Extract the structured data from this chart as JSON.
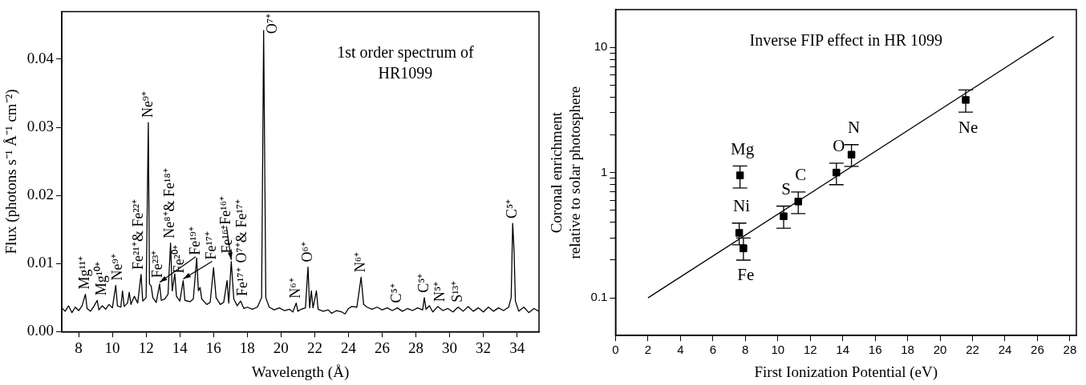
{
  "chart_data": [
    {
      "type": "line",
      "xlabel": "Wavelength (Å)",
      "ylabel": "Flux (photons s⁻¹ Å⁻¹ cm⁻²)",
      "xlim": [
        7,
        35.3
      ],
      "ylim": [
        0,
        0.047
      ],
      "xticks": [
        8,
        10,
        12,
        14,
        16,
        18,
        20,
        22,
        24,
        26,
        28,
        30,
        32,
        34
      ],
      "yticks": [
        {
          "value": 0,
          "label": "0.00"
        },
        {
          "value": 0.01,
          "label": "0.01"
        },
        {
          "value": 0.02,
          "label": "0.02"
        },
        {
          "value": 0.03,
          "label": "0.03"
        },
        {
          "value": 0.04,
          "label": "0.04"
        }
      ],
      "series": [
        {
          "color": "#000000",
          "x": [
            7.0,
            7.2,
            7.4,
            7.6,
            7.8,
            8.0,
            8.2,
            8.4,
            8.5,
            8.7,
            8.9,
            9.1,
            9.2,
            9.4,
            9.6,
            9.8,
            10.0,
            10.2,
            10.3,
            10.5,
            10.6,
            10.7,
            10.9,
            11.0,
            11.1,
            11.3,
            11.5,
            11.7,
            11.8,
            12.0,
            12.13,
            12.2,
            12.3,
            12.4,
            12.6,
            12.8,
            12.9,
            13.1,
            13.3,
            13.45,
            13.55,
            13.7,
            13.8,
            14.0,
            14.2,
            14.3,
            14.6,
            14.8,
            15.0,
            15.1,
            15.2,
            15.3,
            15.6,
            15.8,
            16.0,
            16.15,
            16.4,
            16.6,
            16.8,
            16.9,
            17.05,
            17.2,
            17.4,
            17.6,
            17.8,
            18.0,
            18.3,
            18.6,
            18.85,
            18.97,
            19.1,
            19.3,
            19.6,
            19.9,
            20.2,
            20.5,
            20.7,
            20.9,
            21.0,
            21.2,
            21.45,
            21.6,
            21.7,
            21.8,
            21.9,
            22.1,
            22.2,
            22.5,
            22.8,
            23.0,
            23.3,
            23.6,
            23.8,
            24.0,
            24.2,
            24.5,
            24.75,
            24.9,
            25.1,
            25.4,
            25.7,
            26.0,
            26.3,
            26.6,
            26.9,
            27.2,
            27.5,
            27.8,
            28.1,
            28.4,
            28.5,
            28.6,
            28.8,
            29.0,
            29.3,
            29.6,
            29.9,
            30.2,
            30.5,
            30.8,
            31.1,
            31.4,
            31.7,
            32.0,
            32.3,
            32.6,
            32.9,
            33.2,
            33.5,
            33.65,
            33.74,
            33.82,
            33.9,
            34.1,
            34.4,
            34.7,
            35.0,
            35.3
          ],
          "values": [
            0.0035,
            0.003,
            0.0038,
            0.0028,
            0.0036,
            0.0031,
            0.0038,
            0.0055,
            0.0034,
            0.003,
            0.0037,
            0.0046,
            0.0032,
            0.0038,
            0.0033,
            0.004,
            0.0035,
            0.0068,
            0.0038,
            0.0036,
            0.006,
            0.0037,
            0.0042,
            0.0058,
            0.004,
            0.0052,
            0.0042,
            0.0084,
            0.0045,
            0.005,
            0.0307,
            0.007,
            0.0067,
            0.005,
            0.0043,
            0.007,
            0.0046,
            0.0048,
            0.0055,
            0.013,
            0.006,
            0.0085,
            0.0052,
            0.0045,
            0.0075,
            0.0046,
            0.0044,
            0.0048,
            0.0108,
            0.006,
            0.0065,
            0.0048,
            0.004,
            0.0043,
            0.0094,
            0.005,
            0.004,
            0.0043,
            0.0075,
            0.0042,
            0.0103,
            0.0048,
            0.0038,
            0.0045,
            0.0034,
            0.0036,
            0.0033,
            0.0036,
            0.005,
            0.0442,
            0.005,
            0.0036,
            0.0032,
            0.0035,
            0.0031,
            0.0033,
            0.0029,
            0.0042,
            0.003,
            0.0033,
            0.0035,
            0.0095,
            0.0035,
            0.006,
            0.0035,
            0.006,
            0.0033,
            0.003,
            0.0032,
            0.0027,
            0.0031,
            0.0029,
            0.0026,
            0.0034,
            0.0037,
            0.0036,
            0.008,
            0.004,
            0.0036,
            0.0033,
            0.0036,
            0.0032,
            0.0035,
            0.0031,
            0.0035,
            0.003,
            0.0034,
            0.0031,
            0.0035,
            0.0032,
            0.005,
            0.0033,
            0.0038,
            0.0029,
            0.0037,
            0.0031,
            0.0034,
            0.0029,
            0.0036,
            0.003,
            0.0037,
            0.003,
            0.0035,
            0.0029,
            0.0036,
            0.003,
            0.0035,
            0.0031,
            0.0036,
            0.005,
            0.0159,
            0.012,
            0.0045,
            0.003,
            0.0036,
            0.0028,
            0.0034,
            0.003
          ]
        }
      ],
      "annotations": [
        "1st order spectrum of\nHR1099",
        {
          "text": "Mg¹¹⁺",
          "x": 8.4,
          "y": 0.0055
        },
        {
          "text": "Mg¹⁰⁺",
          "x": 9.1,
          "y": 0.0046
        },
        {
          "text": "Ne⁹⁺",
          "x": 10.2,
          "y": 0.0068
        },
        {
          "text": "Fe²³⁺",
          "x": 10.6,
          "y": 0.006
        },
        {
          "text": "Fe²¹⁺& Fe²²⁺",
          "x": 11.7,
          "y": 0.0084
        },
        {
          "text": "Ne⁹⁺",
          "x": 12.13,
          "y": 0.0307
        },
        {
          "text": "Fe²⁰⁺",
          "x": 12.3,
          "y": 0.0067
        },
        {
          "text": "Fe¹⁹⁺",
          "x": 12.8,
          "y": 0.007
        },
        {
          "text": "Ne⁸⁺& Fe¹⁸⁺",
          "x": 13.45,
          "y": 0.013
        },
        {
          "text": "Fe¹⁷⁺",
          "x": 14.2,
          "y": 0.0075
        },
        {
          "text": "Fe¹⁶⁺",
          "x": 15.0,
          "y": 0.0108
        },
        {
          "text": "O⁷⁺& Fe¹⁷⁺",
          "x": 16.0,
          "y": 0.0094
        },
        {
          "text": "Fe¹⁶⁺",
          "x": 17.05,
          "y": 0.0103
        },
        {
          "text": "Fe¹⁷⁺",
          "x": 17.6,
          "y": 0.0045
        },
        {
          "text": "O⁷⁺",
          "x": 18.97,
          "y": 0.0442
        },
        {
          "text": "N⁶⁺",
          "x": 20.9,
          "y": 0.0042
        },
        {
          "text": "O⁶⁺",
          "x": 21.6,
          "y": 0.0095
        },
        {
          "text": "N⁶⁺",
          "x": 24.75,
          "y": 0.008
        },
        {
          "text": "C⁵⁺",
          "x": 26.9,
          "y": 0.0035
        },
        {
          "text": "C⁵⁺",
          "x": 28.5,
          "y": 0.005
        },
        {
          "text": "N⁵⁺",
          "x": 29.3,
          "y": 0.0037
        },
        {
          "text": "S¹³⁺",
          "x": 30.5,
          "y": 0.0036
        },
        {
          "text": "C⁵⁺",
          "x": 33.74,
          "y": 0.0159
        }
      ]
    },
    {
      "type": "scatter",
      "xlabel": "First Ionization Potential (eV)",
      "ylabel": "Coronal enrichment\nrelative to solar photosphere",
      "log": "y",
      "xlim": [
        0,
        28.4
      ],
      "ylim": [
        0.05,
        20
      ],
      "xticks": [
        0,
        2,
        4,
        6,
        8,
        10,
        12,
        14,
        16,
        18,
        20,
        22,
        24,
        26,
        28
      ],
      "yticks": [
        0.1,
        {
          "value": 0.2,
          "label": null
        },
        {
          "value": 0.3,
          "label": null
        },
        {
          "value": 0.4,
          "label": null
        },
        {
          "value": 0.5,
          "label": null
        },
        {
          "value": 0.6,
          "label": null
        },
        {
          "value": 0.7,
          "label": null
        },
        {
          "value": 0.8,
          "label": null
        },
        {
          "value": 0.9,
          "label": null
        },
        1,
        {
          "value": 2,
          "label": null
        },
        {
          "value": 3,
          "label": null
        },
        {
          "value": 4,
          "label": null
        },
        {
          "value": 5,
          "label": null
        },
        {
          "value": 6,
          "label": null
        },
        {
          "value": 7,
          "label": null
        },
        {
          "value": 8,
          "label": null
        },
        {
          "value": 9,
          "label": null
        },
        10
      ],
      "series": [
        {
          "type": "scatter",
          "marker": "square",
          "color": "#000000",
          "x": [
            7.67,
            7.62,
            7.88,
            10.36,
            11.26,
            13.61,
            14.54,
            21.58
          ],
          "values": [
            0.95,
            0.33,
            0.248,
            0.448,
            0.587,
            1.0,
            1.39,
            3.8
          ],
          "errors": [
            [
              0.754,
              1.13
            ],
            [
              0.265,
              0.395
            ],
            [
              0.2,
              0.3
            ],
            [
              0.36,
              0.54
            ],
            [
              0.47,
              0.7
            ],
            [
              0.8,
              1.19
            ],
            [
              1.12,
              1.67
            ],
            [
              3.04,
              4.57
            ]
          ]
        },
        {
          "type": "line",
          "color": "#000000",
          "x": [
            2,
            27
          ],
          "values": [
            0.1,
            12.2
          ]
        }
      ],
      "annotations": [
        "Inverse FIP effect in HR 1099",
        {
          "text": "Mg",
          "x": 7.67,
          "y": 0.95
        },
        {
          "text": "Ni",
          "x": 7.62,
          "y": 0.33
        },
        {
          "text": "Fe",
          "x": 7.88,
          "y": 0.248
        },
        {
          "text": "S",
          "x": 10.36,
          "y": 0.448
        },
        {
          "text": "C",
          "x": 11.26,
          "y": 0.587
        },
        {
          "text": "O",
          "x": 13.61,
          "y": 1.0
        },
        {
          "text": "N",
          "x": 14.54,
          "y": 1.39
        },
        {
          "text": "Ne",
          "x": 21.58,
          "y": 3.8
        }
      ]
    }
  ]
}
